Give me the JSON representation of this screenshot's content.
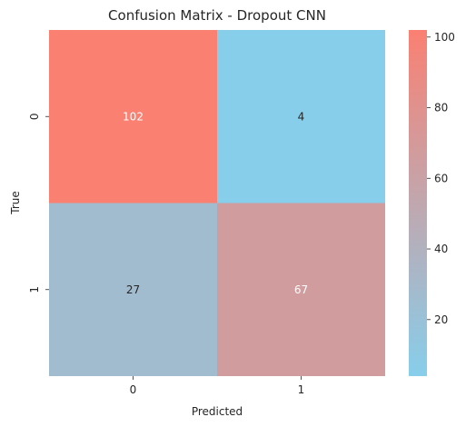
{
  "chart_data": {
    "type": "heatmap",
    "title": "Confusion Matrix - Dropout CNN",
    "xlabel": "Predicted",
    "ylabel": "True",
    "x_categories": [
      "0",
      "1"
    ],
    "y_categories": [
      "0",
      "1"
    ],
    "values": [
      [
        102,
        4
      ],
      [
        27,
        67
      ]
    ],
    "colorbar": {
      "ticks": [
        20,
        40,
        60,
        80,
        100
      ],
      "range": [
        4,
        102
      ],
      "colors": [
        "#87ceeb",
        "#fa8072"
      ]
    },
    "annotation_colors": {
      "light": "#ffffff",
      "dark": "#262626"
    }
  }
}
